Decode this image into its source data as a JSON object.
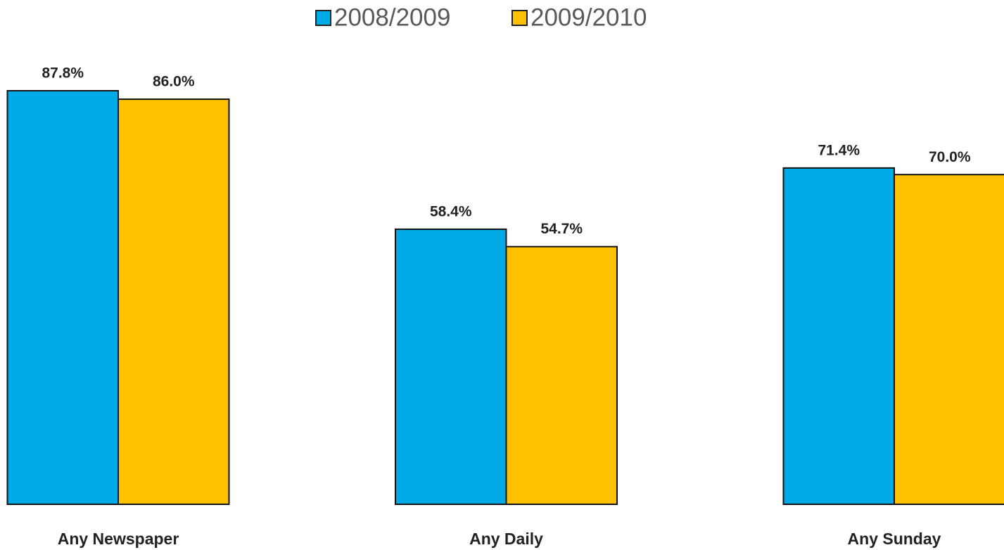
{
  "chart_data": {
    "type": "bar",
    "categories": [
      "Any Newspaper",
      "Any Daily",
      "Any Sunday"
    ],
    "series": [
      {
        "name": "2008/2009",
        "color": "#00aae6",
        "values": [
          87.8,
          58.4,
          71.4
        ],
        "value_labels": [
          "87.8%",
          "58.4%",
          "71.4%"
        ]
      },
      {
        "name": "2009/2010",
        "color": "#ffc000",
        "values": [
          86.0,
          54.7,
          70.0
        ],
        "value_labels": [
          "86.0%",
          "54.7%",
          "70.0%"
        ]
      }
    ]
  }
}
